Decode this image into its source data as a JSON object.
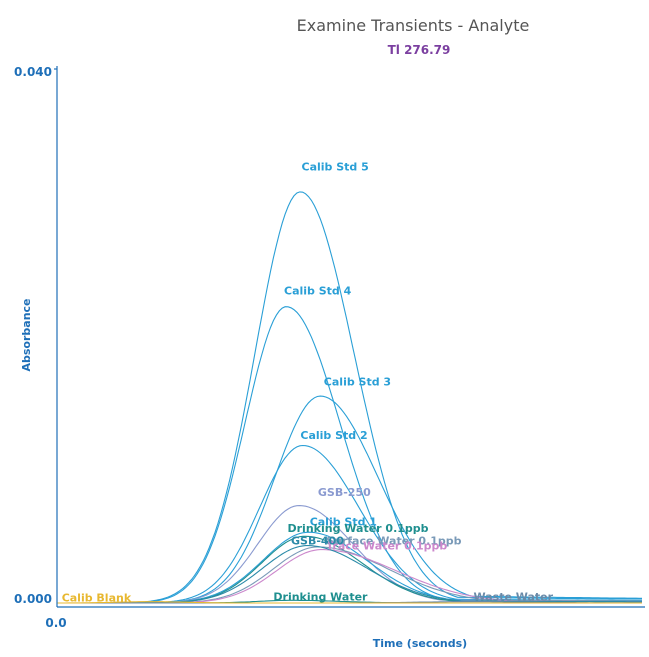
{
  "chart_data": {
    "type": "line",
    "title": "Examine Transients - Analyte",
    "subtitle": "Tl 276.79",
    "xlabel": "Time (seconds)",
    "ylabel": "Absorbance",
    "x_ticks": [
      "0.0"
    ],
    "y_ticks": [
      "0.000",
      "0.040"
    ],
    "ylim": [
      0,
      0.04
    ],
    "xlim": [
      0,
      50
    ],
    "grid": false,
    "colors": {
      "axis": "#1e6fb8",
      "calib": "#2a9fd6",
      "gsb": "#2b8aa8",
      "drinking": "#1f8f8f",
      "surface": "#7a9ab8",
      "trace": "#cc88cc",
      "blank": "#e8b830",
      "waste": "#6a8aa8"
    },
    "series": [
      {
        "name": "Calib Std 5",
        "color": "#2a9fd6",
        "peak_x": 20.8,
        "peak_y": 0.0308,
        "rise": 5.5,
        "fall": 6.5,
        "tail": 0.0006
      },
      {
        "name": "Calib Std 4",
        "color": "#2a9fd6",
        "peak_x": 19.6,
        "peak_y": 0.0222,
        "rise": 5.0,
        "fall": 6.5,
        "tail": 0.0004
      },
      {
        "name": "Calib Std 3",
        "color": "#2a9fd6",
        "peak_x": 22.5,
        "peak_y": 0.0155,
        "rise": 5.5,
        "fall": 7.0,
        "tail": 0.0007
      },
      {
        "name": "Calib Std 2",
        "color": "#2a9fd6",
        "peak_x": 21.0,
        "peak_y": 0.0118,
        "rise": 5.2,
        "fall": 6.8,
        "tail": 0.0003
      },
      {
        "name": "GSB-250",
        "color": "#8a9ad0",
        "peak_x": 20.7,
        "peak_y": 0.0073,
        "rise": 5.0,
        "fall": 6.5,
        "tail": 0.0003
      },
      {
        "name": "Calib Std 1",
        "color": "#2a9fd6",
        "peak_x": 21.5,
        "peak_y": 0.0053,
        "rise": 5.5,
        "fall": 7.0,
        "tail": 0.0002
      },
      {
        "name": "Drinking Water 0.1ppb",
        "color": "#1f8f8f",
        "peak_x": 21.2,
        "peak_y": 0.005,
        "rise": 5.2,
        "fall": 6.8,
        "tail": 0.0002
      },
      {
        "name": "Surface Water 0.1ppb",
        "color": "#7a9ab8",
        "peak_x": 22.3,
        "peak_y": 0.0042,
        "rise": 5.4,
        "fall": 8.5,
        "tail": 0.0003
      },
      {
        "name": "Trace Water 0.1ppb",
        "color": "#cc88cc",
        "peak_x": 22.6,
        "peak_y": 0.004,
        "rise": 5.4,
        "fall": 9.0,
        "tail": 0.0002
      },
      {
        "name": "GSB-400",
        "color": "#2b8aa8",
        "peak_x": 21.4,
        "peak_y": 0.0043,
        "rise": 5.4,
        "fall": 7.2,
        "tail": 0.0002
      },
      {
        "name": "Drinking Water",
        "color": "#1f8f8f",
        "peak_x": 20.0,
        "peak_y": 0.0002,
        "rise": 4.0,
        "fall": 6.0,
        "tail": 0.0
      },
      {
        "name": "Waste Water",
        "color": "#6a8aa8",
        "peak_x": 35.0,
        "peak_y": 0.0001,
        "rise": 6.0,
        "fall": 8.0,
        "tail": 0.0
      },
      {
        "name": "Calib Blank",
        "color": "#e8b830",
        "peak_x": 8.0,
        "peak_y": 0.0001,
        "rise": 4.0,
        "fall": 4.0,
        "tail": 0.0
      }
    ],
    "labels": [
      {
        "text": "Calib Std 5",
        "x": 20.9,
        "y": 0.0324,
        "color": "#2a9fd6"
      },
      {
        "text": "Calib Std 4",
        "x": 19.4,
        "y": 0.0231,
        "color": "#2a9fd6"
      },
      {
        "text": "Calib Std 3",
        "x": 22.8,
        "y": 0.0163,
        "color": "#2a9fd6"
      },
      {
        "text": "Calib Std 2",
        "x": 20.8,
        "y": 0.0123,
        "color": "#2a9fd6"
      },
      {
        "text": "GSB-250",
        "x": 22.3,
        "y": 0.008,
        "color": "#8a9ad0"
      },
      {
        "text": "Calib Std 1",
        "x": 21.6,
        "y": 0.0058,
        "color": "#2a9fd6"
      },
      {
        "text": "Drinking Water 0.1ppb",
        "x": 19.7,
        "y": 0.0053,
        "color": "#1f8f8f"
      },
      {
        "text": "Surface Water 0.1ppb",
        "x": 23.0,
        "y": 0.0044,
        "color": "#7a9ab8"
      },
      {
        "text": "Trace Water 0.1ppb",
        "x": 23.0,
        "y": 0.004,
        "color": "#cc88cc"
      },
      {
        "text": "GSB-400",
        "x": 20.0,
        "y": 0.0044,
        "color": "#2b8aa8"
      },
      {
        "text": "Drinking Water",
        "x": 18.5,
        "y": 0.0002,
        "color": "#1f8f8f"
      },
      {
        "text": "Waste Water",
        "x": 35.6,
        "y": 0.0002,
        "color": "#6a8aa8"
      },
      {
        "text": "Calib Blank",
        "x": 0.4,
        "y": 0.0001,
        "color": "#e8b830"
      }
    ]
  }
}
